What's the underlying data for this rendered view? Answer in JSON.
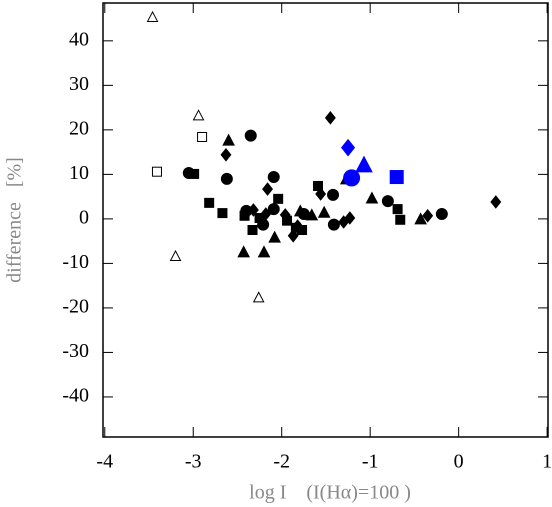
{
  "chart_data": {
    "type": "scatter",
    "xlabel": "log I    (I(Hα)=100 )",
    "ylabel": "difference   [%]",
    "xlim": [
      -4.02,
      1.01
    ],
    "ylim": [
      -49,
      48.5
    ],
    "xticks": [
      -4,
      -3,
      -2,
      -1,
      0,
      1
    ],
    "yticks": [
      -40,
      -30,
      -20,
      -10,
      0,
      10,
      20,
      30,
      40
    ],
    "series": [
      {
        "marker": "triangle",
        "filled": false,
        "color": "#000000",
        "size": 5,
        "x": [
          -3.46,
          -2.94,
          -3.2,
          -2.26
        ],
        "values": [
          45.2,
          23.1,
          -8.5,
          -17.8
        ]
      },
      {
        "marker": "square",
        "filled": false,
        "color": "#000000",
        "size": 4.5,
        "x": [
          -3.41,
          -2.9
        ],
        "values": [
          10.6,
          18.4
        ]
      },
      {
        "marker": "circle",
        "filled": true,
        "color": "#000000",
        "size": 5.5,
        "x": [
          -3.05,
          -2.35,
          -2.62,
          -2.09,
          -2.4,
          -2.21,
          -2.09,
          -1.75,
          -1.41,
          -1.42,
          -0.8,
          -0.19
        ],
        "values": [
          10.3,
          18.7,
          9.0,
          9.4,
          1.8,
          -1.3,
          2.2,
          1.1,
          -1.3,
          5.4,
          4.0,
          1.1
        ]
      },
      {
        "marker": "square",
        "filled": true,
        "color": "#000000",
        "size": 4.5,
        "x": [
          -2.99,
          -2.82,
          -2.67,
          -2.42,
          -2.33,
          -2.25,
          -2.04,
          -1.94,
          -1.84,
          -1.77,
          -1.59,
          -0.69,
          -0.66
        ],
        "values": [
          10.1,
          3.6,
          1.3,
          0.7,
          -2.5,
          0.2,
          4.5,
          -0.4,
          -2.0,
          -2.5,
          7.4,
          2.2,
          -0.2
        ]
      },
      {
        "marker": "triangle",
        "filled": true,
        "color": "#000000",
        "size": 5.5,
        "x": [
          -2.6,
          -2.43,
          -2.2,
          -2.08,
          -1.79,
          -1.66,
          -1.52,
          -1.27,
          -0.98,
          -0.43
        ],
        "values": [
          17.5,
          -7.6,
          -7.6,
          -4.3,
          1.6,
          0.7,
          1.3,
          8.8,
          4.5,
          -0.2
        ]
      },
      {
        "marker": "diamond",
        "filled": true,
        "color": "#000000",
        "size": 6,
        "x": [
          -1.45,
          -2.63,
          -2.16,
          -2.32,
          -2.18,
          -1.96,
          -1.87,
          -1.82,
          -1.56,
          -1.3,
          -1.23,
          -0.35,
          0.42
        ],
        "values": [
          22.7,
          14.4,
          6.7,
          2.0,
          1.1,
          0.9,
          -3.8,
          -1.6,
          5.6,
          -0.7,
          0.2,
          0.7,
          3.8
        ]
      },
      {
        "marker": "circle",
        "filled": true,
        "color": "#0000ff",
        "size": 8,
        "x": [
          -1.21
        ],
        "values": [
          9.2
        ]
      },
      {
        "marker": "diamond",
        "filled": true,
        "color": "#0000ff",
        "size": 8,
        "x": [
          -1.25
        ],
        "values": [
          16
        ]
      },
      {
        "marker": "triangle",
        "filled": true,
        "color": "#0000ff",
        "size": 8,
        "x": [
          -1.07
        ],
        "values": [
          11.9
        ]
      },
      {
        "marker": "square",
        "filled": true,
        "color": "#0000ff",
        "size": 6.5,
        "x": [
          -0.7
        ],
        "values": [
          9.4
        ]
      }
    ]
  }
}
